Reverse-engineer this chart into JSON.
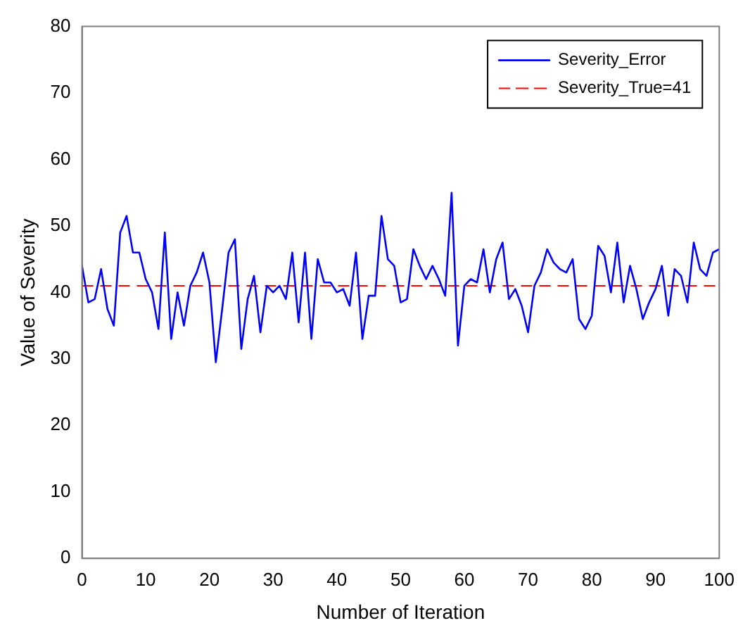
{
  "chart_data": {
    "type": "line",
    "xlabel": "Number of Iteration",
    "ylabel": "Value of Severity",
    "x": [
      0,
      1,
      2,
      3,
      4,
      5,
      6,
      7,
      8,
      9,
      10,
      11,
      12,
      13,
      14,
      15,
      16,
      17,
      18,
      19,
      20,
      21,
      22,
      23,
      24,
      25,
      26,
      27,
      28,
      29,
      30,
      31,
      32,
      33,
      34,
      35,
      36,
      37,
      38,
      39,
      40,
      41,
      42,
      43,
      44,
      45,
      46,
      47,
      48,
      49,
      50,
      51,
      52,
      53,
      54,
      55,
      56,
      57,
      58,
      59,
      60,
      61,
      62,
      63,
      64,
      65,
      66,
      67,
      68,
      69,
      70,
      71,
      72,
      73,
      74,
      75,
      76,
      77,
      78,
      79,
      80,
      81,
      82,
      83,
      84,
      85,
      86,
      87,
      88,
      89,
      90,
      91,
      92,
      93,
      94,
      95,
      96,
      97,
      98,
      99,
      100
    ],
    "series": [
      {
        "name": "Severity_Error",
        "color": "#0000ff",
        "values": [
          44,
          38.5,
          39,
          43.5,
          37.5,
          35,
          49,
          51.5,
          46,
          46,
          42,
          40,
          34.5,
          49,
          33,
          40,
          35,
          41,
          43,
          46,
          41.5,
          29.5,
          37.5,
          46,
          48,
          31.5,
          39,
          42.5,
          34,
          41,
          40,
          41,
          39,
          46,
          35.5,
          46,
          33,
          45,
          41.5,
          41.5,
          40,
          40.5,
          38,
          46,
          33,
          39.5,
          39.5,
          51.5,
          45,
          44,
          38.5,
          39,
          46.5,
          44,
          42,
          44,
          42,
          39.5,
          55,
          32,
          41,
          42,
          41.5,
          46.5,
          40,
          45,
          47.5,
          39,
          40.5,
          38,
          34,
          41,
          43,
          46.5,
          44.5,
          43.5,
          43,
          45,
          36,
          34.5,
          36.5,
          47,
          45.5,
          40,
          47.5,
          38.5,
          44,
          40.5,
          36,
          38.5,
          40.5,
          44,
          36.5,
          43.5,
          42.5,
          38.5,
          47.5,
          43.5,
          42.5,
          46,
          46.5
        ]
      }
    ],
    "ref_lines": [
      {
        "axis": "y",
        "value": 41,
        "label": "Severity_True=41",
        "color": "#ff0000",
        "line_style": "dashed"
      }
    ],
    "xlim": [
      0,
      100
    ],
    "xticks": [
      0,
      10,
      20,
      30,
      40,
      50,
      60,
      70,
      80,
      90,
      100
    ],
    "ylim": [
      0,
      80
    ],
    "yticks": [
      0,
      10,
      20,
      30,
      40,
      50,
      60,
      70,
      80
    ],
    "grid": false,
    "legend": "top right",
    "marker": "none",
    "line_style": "solid"
  }
}
